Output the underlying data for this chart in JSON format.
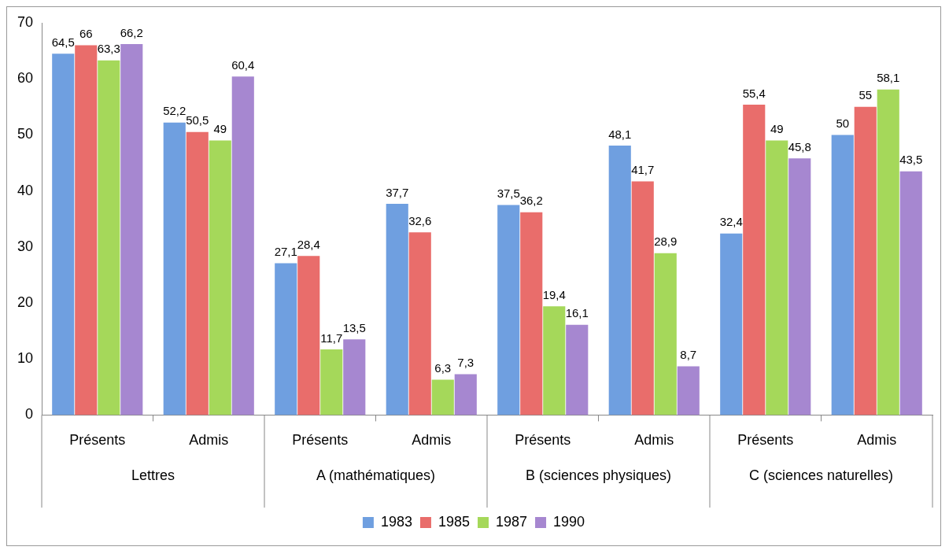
{
  "chart_data": {
    "type": "bar",
    "categories": [
      "Présents",
      "Admis",
      "Présents",
      "Admis",
      "Présents",
      "Admis",
      "Présents",
      "Admis"
    ],
    "annotations": [
      "Lettres",
      "A (mathématiques)",
      "B (sciences physiques)",
      "C (sciences naturelles)"
    ],
    "series": [
      {
        "name": "1983",
        "color": "#6f9fe0",
        "values": [
          64.5,
          52.2,
          27.1,
          37.7,
          37.5,
          48.1,
          32.4,
          50
        ],
        "value_labels": [
          "64,5",
          "52,2",
          "27,1",
          "37,7",
          "37,5",
          "48,1",
          "32,4",
          "50"
        ]
      },
      {
        "name": "1985",
        "color": "#e96d6b",
        "values": [
          66,
          50.5,
          28.4,
          32.6,
          36.2,
          41.7,
          55.4,
          55
        ],
        "value_labels": [
          "66",
          "50,5",
          "28,4",
          "32,6",
          "36,2",
          "41,7",
          "55,4",
          "55"
        ]
      },
      {
        "name": "1987",
        "color": "#a5d85a",
        "values": [
          63.3,
          49,
          11.7,
          6.3,
          19.4,
          28.9,
          49,
          58.1
        ],
        "value_labels": [
          "63,3",
          "49",
          "11,7",
          "6,3",
          "19,4",
          "28,9",
          "49",
          "58,1"
        ]
      },
      {
        "name": "1990",
        "color": "#a687d0",
        "values": [
          66.2,
          60.4,
          13.5,
          7.3,
          16.1,
          8.7,
          45.8,
          43.5
        ],
        "value_labels": [
          "66,2",
          "60,4",
          "13,5",
          "7,3",
          "16,1",
          "8,7",
          "45,8",
          "43,5"
        ]
      }
    ],
    "ylim": [
      0,
      70
    ],
    "yticks": [
      0,
      10,
      20,
      30,
      40,
      50,
      60,
      70
    ],
    "grid": false,
    "legend": "bottom"
  }
}
